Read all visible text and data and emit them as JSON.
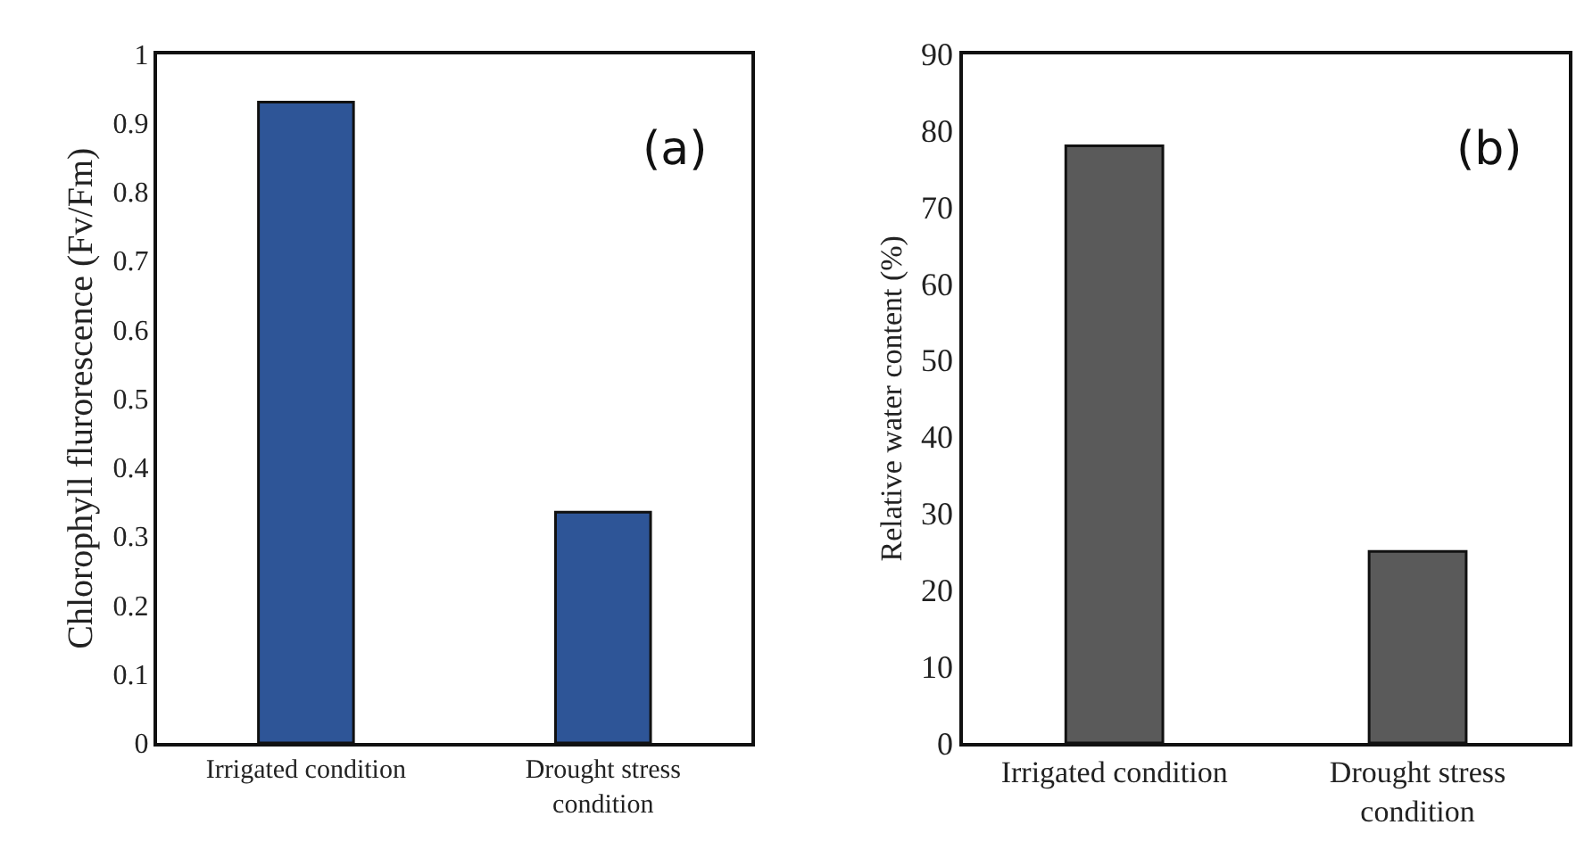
{
  "chart_data": [
    {
      "type": "bar",
      "categories": [
        "Irrigated condition",
        "Drought stress condition"
      ],
      "values": [
        0.93,
        0.335
      ],
      "color": "#2e5597",
      "ylabel": "Chlorophyll flurorescence (Fv/Fm)",
      "ylim": [
        0,
        1
      ],
      "yticks": [
        0,
        0.1,
        0.2,
        0.3,
        0.4,
        0.5,
        0.6,
        0.7,
        0.8,
        0.9,
        1
      ],
      "annotations": [
        "(a)"
      ]
    },
    {
      "type": "bar",
      "categories": [
        "Irrigated condition",
        "Drought stress condition"
      ],
      "values": [
        78,
        25
      ],
      "color": "#5a5a5a",
      "ylabel": "Relative water content (%)",
      "ylim": [
        0,
        90
      ],
      "yticks": [
        0,
        10,
        20,
        30,
        40,
        50,
        60,
        70,
        80,
        90
      ],
      "annotations": [
        "(b)"
      ]
    }
  ]
}
